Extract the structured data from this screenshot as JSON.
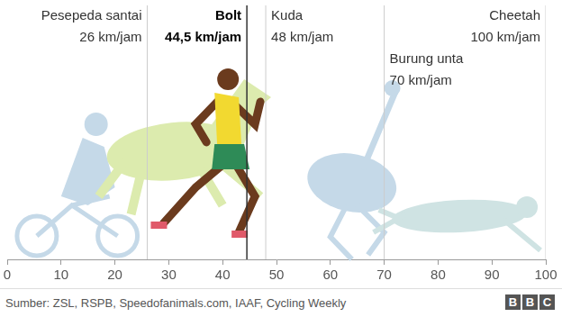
{
  "chart_data": {
    "type": "rule",
    "categories": [
      "Pesepeda santai",
      "Bolt",
      "Kuda",
      "Burung unta",
      "Cheetah"
    ],
    "values": [
      26,
      44.5,
      48,
      70,
      100
    ],
    "value_labels": [
      "26 km/jam",
      "44,5 km/jam",
      "48 km/jam",
      "70 km/jam",
      "100 km/jam"
    ],
    "colors": [
      "#cccccc",
      "#333333",
      "#cccccc",
      "#cccccc",
      "#cccccc"
    ],
    "xlim": [
      0,
      100
    ],
    "xticks": [
      0,
      10,
      20,
      30,
      40,
      50,
      60,
      70,
      80,
      90,
      100
    ],
    "grid": false,
    "data_labels": true,
    "tick_labels": "x",
    "caption": "Sumber: ZSL, RSPB, Speedofanimals.com, IAAF, Cycling Weekly",
    "logo": "BBC"
  }
}
